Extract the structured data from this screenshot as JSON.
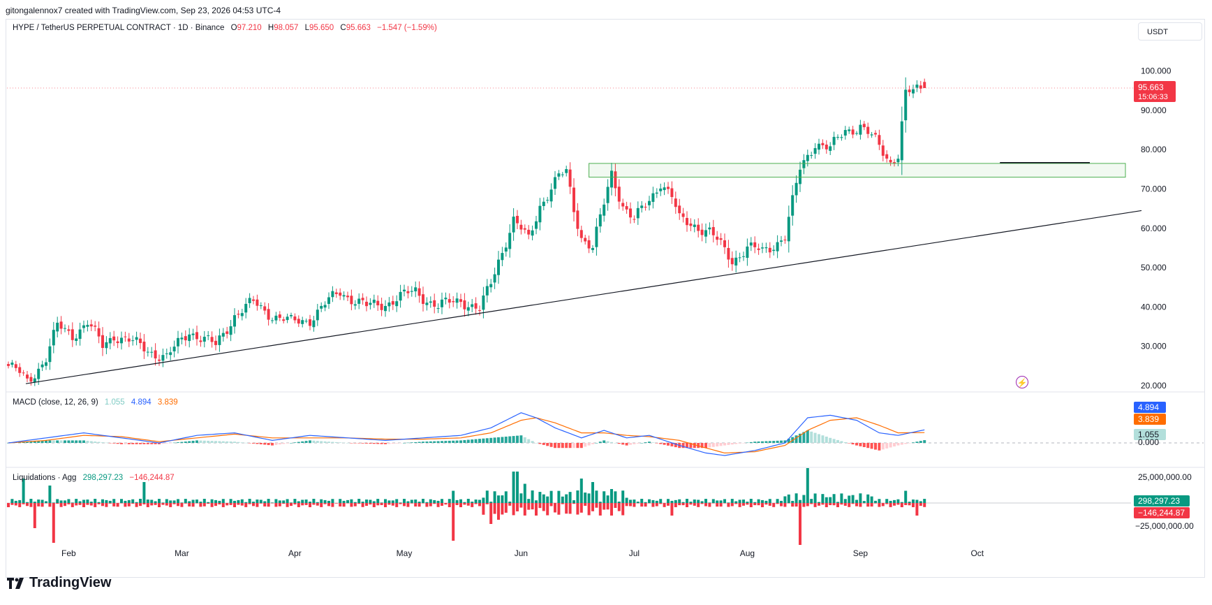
{
  "header": {
    "attribution": "gitongalennox7 created with TradingView.com, Sep 23, 2026 04:53 UTC-4"
  },
  "currency_button": "USDT",
  "legend": {
    "symbol": "HYPE / TetherUS PERPETUAL CONTRACT · 1D · Binance",
    "o_label": "O",
    "o_value": "97.210",
    "h_label": "H",
    "h_value": "98.057",
    "l_label": "L",
    "l_value": "95.650",
    "c_label": "C",
    "c_value": "95.663",
    "change": "−1.547 (−1.59%)"
  },
  "macd_legend": {
    "label": "MACD (close, 12, 26, 9)",
    "hist": "1.055",
    "macd": "4.894",
    "signal": "3.839"
  },
  "liq_legend": {
    "label": "Liquidations · Agg",
    "long": "298,297.23",
    "short": "−146,244.87"
  },
  "footer": {
    "brand": "TradingView"
  },
  "colors": {
    "up": "#089981",
    "down": "#f23645",
    "macd": "#2962ff",
    "signal": "#ff6d00",
    "hist_up": "#26a69a",
    "hist_up_light": "#b2dfdb",
    "hist_down": "#ff5252",
    "hist_down_light": "#ffcdd2"
  },
  "chart_data": [
    {
      "type": "candlestick",
      "title": "HYPE / TetherUS PERPETUAL CONTRACT · 1D · Binance",
      "y_ticks": [
        "100.000",
        "90.000",
        "80.000",
        "70.000",
        "60.000",
        "50.000",
        "40.000",
        "30.000",
        "20.000"
      ],
      "ylim": [
        18,
        103
      ],
      "x_ticks": [
        "Feb",
        "Mar",
        "Apr",
        "May",
        "Jun",
        "Jul",
        "Aug",
        "Sep",
        "Oct"
      ],
      "last_price_label": "95.663",
      "countdown_label": "15:06:33",
      "trendline_approx": [
        [
          0,
          20.5
        ],
        [
          270,
          64.5
        ]
      ],
      "zone_approx": {
        "x_from": 154,
        "x_to": 275,
        "y_from": 73.0,
        "y_to": 76.5
      },
      "support_line_approx": {
        "x_from": 263,
        "x_to": 285,
        "y": 76.7
      },
      "keyframes_close": [
        [
          0,
          25
        ],
        [
          3,
          23
        ],
        [
          5,
          21
        ],
        [
          10,
          27
        ],
        [
          13,
          35
        ],
        [
          17,
          33
        ],
        [
          21,
          36
        ],
        [
          25,
          30
        ],
        [
          28,
          33
        ],
        [
          35,
          30
        ],
        [
          42,
          27
        ],
        [
          48,
          34
        ],
        [
          55,
          30
        ],
        [
          60,
          38
        ],
        [
          65,
          41
        ],
        [
          70,
          38
        ],
        [
          75,
          36
        ],
        [
          80,
          37
        ],
        [
          88,
          44
        ],
        [
          95,
          40
        ],
        [
          100,
          41
        ],
        [
          108,
          44
        ],
        [
          114,
          40
        ],
        [
          120,
          42
        ],
        [
          125,
          39
        ],
        [
          128,
          46
        ],
        [
          130,
          52
        ],
        [
          134,
          62
        ],
        [
          138,
          57
        ],
        [
          141,
          66
        ],
        [
          146,
          73
        ],
        [
          148,
          74
        ],
        [
          150,
          65
        ],
        [
          152,
          58
        ],
        [
          155,
          55
        ],
        [
          158,
          66
        ],
        [
          160,
          74
        ],
        [
          163,
          66
        ],
        [
          166,
          62
        ],
        [
          170,
          67
        ],
        [
          173,
          72
        ],
        [
          176,
          68
        ],
        [
          178,
          62
        ],
        [
          182,
          61
        ],
        [
          186,
          59
        ],
        [
          192,
          52
        ],
        [
          196,
          55
        ],
        [
          200,
          54
        ],
        [
          206,
          58
        ],
        [
          210,
          75
        ],
        [
          214,
          82
        ],
        [
          218,
          80
        ],
        [
          222,
          85
        ],
        [
          226,
          86
        ],
        [
          230,
          82
        ],
        [
          234,
          77
        ],
        [
          236,
          79
        ],
        [
          238,
          94
        ],
        [
          241,
          95
        ],
        [
          243,
          95.7
        ]
      ]
    },
    {
      "type": "macd",
      "params": "close, 12, 26, 9",
      "y_labels": [
        "4.894",
        "3.839",
        "1.055",
        "0.000"
      ],
      "macd_keyframes": [
        [
          0,
          0
        ],
        [
          10,
          2
        ],
        [
          20,
          4
        ],
        [
          30,
          2
        ],
        [
          40,
          0
        ],
        [
          50,
          3
        ],
        [
          60,
          4
        ],
        [
          70,
          1
        ],
        [
          80,
          3
        ],
        [
          90,
          2
        ],
        [
          100,
          1
        ],
        [
          110,
          2
        ],
        [
          120,
          3
        ],
        [
          128,
          6
        ],
        [
          136,
          12
        ],
        [
          140,
          10
        ],
        [
          145,
          6
        ],
        [
          152,
          2
        ],
        [
          158,
          5
        ],
        [
          164,
          2
        ],
        [
          170,
          3
        ],
        [
          178,
          -1
        ],
        [
          185,
          -4
        ],
        [
          190,
          -5
        ],
        [
          198,
          -3
        ],
        [
          206,
          0
        ],
        [
          212,
          10
        ],
        [
          218,
          11
        ],
        [
          225,
          9
        ],
        [
          231,
          4
        ],
        [
          236,
          3
        ],
        [
          243,
          5.2
        ]
      ],
      "signal_keyframes": [
        [
          0,
          0
        ],
        [
          10,
          1
        ],
        [
          20,
          3
        ],
        [
          30,
          2.5
        ],
        [
          40,
          0.5
        ],
        [
          50,
          2
        ],
        [
          60,
          3.5
        ],
        [
          70,
          2
        ],
        [
          80,
          2
        ],
        [
          90,
          2
        ],
        [
          100,
          1.5
        ],
        [
          110,
          1.5
        ],
        [
          120,
          2
        ],
        [
          128,
          4
        ],
        [
          136,
          9
        ],
        [
          140,
          10
        ],
        [
          145,
          8
        ],
        [
          152,
          4
        ],
        [
          158,
          4
        ],
        [
          164,
          3
        ],
        [
          170,
          2.5
        ],
        [
          178,
          1
        ],
        [
          185,
          -2
        ],
        [
          190,
          -4
        ],
        [
          198,
          -3.5
        ],
        [
          206,
          -1
        ],
        [
          212,
          5
        ],
        [
          218,
          9
        ],
        [
          225,
          10
        ],
        [
          231,
          7
        ],
        [
          236,
          4
        ],
        [
          243,
          4.1
        ]
      ]
    },
    {
      "type": "bar",
      "name": "Liquidations · Agg",
      "y_labels": [
        "25,000,000.00",
        "298,297.23",
        "−146,244.87",
        "−25,000,000.00"
      ],
      "spikes_long": [
        [
          4,
          0.7
        ],
        [
          11,
          0.5
        ],
        [
          36,
          0.6
        ],
        [
          118,
          0.35
        ],
        [
          134,
          0.9
        ],
        [
          135,
          0.9
        ],
        [
          137,
          0.55
        ],
        [
          152,
          0.7
        ],
        [
          155,
          0.6
        ],
        [
          160,
          0.4
        ],
        [
          212,
          1.0
        ],
        [
          238,
          0.35
        ]
      ],
      "spikes_short": [
        [
          7,
          0.6
        ],
        [
          12,
          0.95
        ],
        [
          118,
          0.9
        ],
        [
          128,
          0.5
        ],
        [
          130,
          0.4
        ],
        [
          176,
          0.3
        ],
        [
          210,
          1.0
        ],
        [
          241,
          0.3
        ]
      ]
    }
  ]
}
